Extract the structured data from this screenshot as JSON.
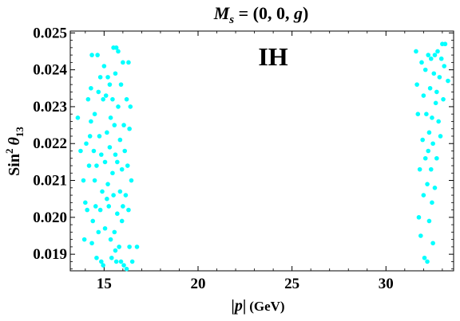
{
  "chart_data": {
    "type": "scatter",
    "title": "M_s = (0, 0, g)",
    "title_parts": {
      "sym": "M",
      "sub": "s",
      "rest": " = (0, 0, ",
      "var": "g",
      "close": ")"
    },
    "annotation": "IH",
    "xlabel": "|p| (GeV)",
    "xlabel_parts": {
      "bar1": "|",
      "var": "p",
      "bar2": "|",
      "unit": "(GeV)"
    },
    "ylabel": "Sin² θ13",
    "ylabel_parts": {
      "base": "Sin",
      "sup": "2",
      "var": "θ",
      "sub": "13"
    },
    "xlim": [
      13.2,
      33.6
    ],
    "ylim": [
      0.01855,
      0.02505
    ],
    "xticks": [
      15,
      20,
      25,
      30
    ],
    "xtick_labels": [
      "15",
      "20",
      "25",
      "30"
    ],
    "yticks": [
      0.019,
      0.02,
      0.021,
      0.022,
      0.023,
      0.024,
      0.025
    ],
    "ytick_labels": [
      "0.019",
      "0.020",
      "0.021",
      "0.022",
      "0.023",
      "0.024",
      "0.025"
    ],
    "grid": false,
    "point_color": "#00ffff",
    "series": [
      {
        "points": [
          [
            13.6,
            0.0227
          ],
          [
            13.75,
            0.0218
          ],
          [
            13.9,
            0.021
          ],
          [
            14.0,
            0.0204
          ],
          [
            13.95,
            0.0194
          ],
          [
            14.1,
            0.0202
          ],
          [
            14.15,
            0.0232
          ],
          [
            14.2,
            0.0214
          ],
          [
            14.3,
            0.0226
          ],
          [
            14.25,
            0.0222
          ],
          [
            14.3,
            0.0235
          ],
          [
            14.35,
            0.0193
          ],
          [
            14.35,
            0.0244
          ],
          [
            14.5,
            0.021
          ],
          [
            14.45,
            0.0218
          ],
          [
            14.5,
            0.0228
          ],
          [
            14.55,
            0.0203
          ],
          [
            14.6,
            0.0214
          ],
          [
            14.6,
            0.0189
          ],
          [
            14.7,
            0.0234
          ],
          [
            14.65,
            0.0244
          ],
          [
            14.7,
            0.0196
          ],
          [
            14.75,
            0.0222
          ],
          [
            14.8,
            0.0202
          ],
          [
            14.85,
            0.0217
          ],
          [
            14.85,
            0.0188
          ],
          [
            14.9,
            0.0207
          ],
          [
            14.95,
            0.0232
          ],
          [
            14.95,
            0.0187
          ],
          [
            15.0,
            0.0241
          ],
          [
            15.05,
            0.0215
          ],
          [
            15.05,
            0.0197
          ],
          [
            15.1,
            0.0233
          ],
          [
            15.15,
            0.0223
          ],
          [
            15.2,
            0.0209
          ],
          [
            15.2,
            0.0238
          ],
          [
            15.25,
            0.0203
          ],
          [
            15.3,
            0.0219
          ],
          [
            15.3,
            0.0236
          ],
          [
            15.35,
            0.0194
          ],
          [
            15.35,
            0.0227
          ],
          [
            15.4,
            0.0189
          ],
          [
            15.45,
            0.0212
          ],
          [
            15.45,
            0.0232
          ],
          [
            15.5,
            0.0246
          ],
          [
            15.5,
            0.0206
          ],
          [
            15.55,
            0.0196
          ],
          [
            15.55,
            0.0225
          ],
          [
            15.6,
            0.0239
          ],
          [
            15.6,
            0.0217
          ],
          [
            15.65,
            0.0246
          ],
          [
            15.65,
            0.0188
          ],
          [
            15.7,
            0.0201
          ],
          [
            15.7,
            0.0215
          ],
          [
            15.75,
            0.023
          ],
          [
            15.75,
            0.0245
          ],
          [
            15.8,
            0.0192
          ],
          [
            15.85,
            0.0207
          ],
          [
            15.85,
            0.0221
          ],
          [
            15.9,
            0.0236
          ],
          [
            15.9,
            0.0188
          ],
          [
            15.95,
            0.0213
          ],
          [
            15.95,
            0.0199
          ],
          [
            16.0,
            0.0242
          ],
          [
            16.05,
            0.0187
          ],
          [
            16.05,
            0.0225
          ],
          [
            16.1,
            0.0218
          ],
          [
            16.15,
            0.0206
          ],
          [
            16.2,
            0.0232
          ],
          [
            16.2,
            0.0186
          ],
          [
            16.25,
            0.0214
          ],
          [
            16.3,
            0.0242
          ],
          [
            16.3,
            0.0202
          ],
          [
            16.35,
            0.0224
          ],
          [
            16.35,
            0.0192
          ],
          [
            16.4,
            0.023
          ],
          [
            16.45,
            0.021
          ],
          [
            16.5,
            0.0188
          ],
          [
            16.75,
            0.0192
          ],
          [
            14.05,
            0.022
          ],
          [
            14.4,
            0.0199
          ],
          [
            14.8,
            0.0238
          ],
          [
            15.15,
            0.0205
          ],
          [
            15.6,
            0.0191
          ],
          [
            16.0,
            0.0203
          ],
          [
            31.6,
            0.0245
          ],
          [
            31.65,
            0.0236
          ],
          [
            31.7,
            0.0228
          ],
          [
            31.75,
            0.02
          ],
          [
            31.8,
            0.0213
          ],
          [
            31.85,
            0.0195
          ],
          [
            31.9,
            0.0242
          ],
          [
            31.95,
            0.0221
          ],
          [
            32.0,
            0.0206
          ],
          [
            32.0,
            0.0233
          ],
          [
            32.05,
            0.0189
          ],
          [
            32.1,
            0.0216
          ],
          [
            32.1,
            0.024
          ],
          [
            32.15,
            0.0228
          ],
          [
            32.2,
            0.0209
          ],
          [
            32.2,
            0.0188
          ],
          [
            32.25,
            0.0244
          ],
          [
            32.3,
            0.0223
          ],
          [
            32.3,
            0.0199
          ],
          [
            32.35,
            0.0235
          ],
          [
            32.4,
            0.0213
          ],
          [
            32.4,
            0.0243
          ],
          [
            32.45,
            0.0227
          ],
          [
            32.5,
            0.0193
          ],
          [
            32.5,
            0.022
          ],
          [
            32.55,
            0.0239
          ],
          [
            32.6,
            0.0208
          ],
          [
            32.6,
            0.0244
          ],
          [
            32.65,
            0.0231
          ],
          [
            32.7,
            0.0216
          ],
          [
            32.75,
            0.0245
          ],
          [
            32.8,
            0.0226
          ],
          [
            32.85,
            0.0238
          ],
          [
            32.9,
            0.0222
          ],
          [
            32.95,
            0.0243
          ],
          [
            33.0,
            0.0247
          ],
          [
            33.05,
            0.0232
          ],
          [
            33.1,
            0.0241
          ],
          [
            33.15,
            0.0247
          ],
          [
            33.3,
            0.0237
          ],
          [
            32.25,
            0.0218
          ],
          [
            32.45,
            0.0204
          ],
          [
            32.7,
            0.0234
          ]
        ]
      }
    ]
  }
}
